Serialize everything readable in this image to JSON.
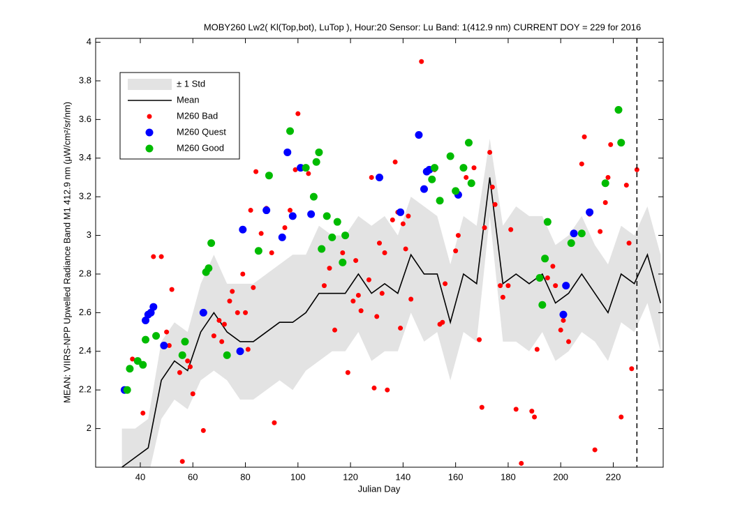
{
  "chart_data": {
    "type": "line",
    "title": "MOBY260   Lw2( Kl(Top,bot), LuTop ),   Hour:20 Sensor: Lu Band: 1(412.9 nm)   CURRENT DOY = 229 for 2016",
    "x_label": "Julian Day",
    "y_label": "MEAN: VIIRS-NPP Upwelled Radiance Band M1 412.9 nm (μW/cm²/sr/nm)",
    "xlim": [
      23,
      239
    ],
    "ylim": [
      1.8,
      4.02
    ],
    "xticks": [
      40,
      60,
      80,
      100,
      120,
      140,
      160,
      180,
      200,
      220
    ],
    "yticks": [
      2,
      2.2,
      2.4,
      2.6,
      2.8,
      3,
      3.2,
      3.4,
      3.6,
      3.8,
      4
    ],
    "current_day": 229,
    "legend": "upper left",
    "series": [
      {
        "name": "Mean",
        "style": "line",
        "color": "#000000",
        "x": [
          33,
          38,
          43,
          48,
          53,
          58,
          63,
          68,
          73,
          78,
          83,
          88,
          93,
          98,
          103,
          108,
          113,
          118,
          123,
          128,
          133,
          138,
          143,
          148,
          153,
          158,
          163,
          168,
          173,
          178,
          183,
          188,
          193,
          198,
          203,
          208,
          213,
          218,
          223,
          228,
          233,
          238
        ],
        "values": [
          1.8,
          1.85,
          1.9,
          2.25,
          2.35,
          2.3,
          2.5,
          2.6,
          2.5,
          2.45,
          2.45,
          2.5,
          2.55,
          2.55,
          2.6,
          2.7,
          2.7,
          2.7,
          2.8,
          2.7,
          2.75,
          2.7,
          2.9,
          2.8,
          2.8,
          2.55,
          2.8,
          2.75,
          3.3,
          2.75,
          2.8,
          2.75,
          2.8,
          2.65,
          2.7,
          2.8,
          2.7,
          2.6,
          2.8,
          2.75,
          2.9,
          2.65
        ]
      },
      {
        "name": "± 1 Std",
        "style": "band",
        "color": "#e3e3e3",
        "values": [
          0.2,
          0.15,
          0.15,
          0.2,
          0.2,
          0.2,
          0.25,
          0.3,
          0.25,
          0.3,
          0.3,
          0.3,
          0.3,
          0.35,
          0.3,
          0.35,
          0.3,
          0.3,
          0.3,
          0.35,
          0.35,
          0.3,
          0.3,
          0.35,
          0.3,
          0.3,
          0.3,
          0.3,
          0.2,
          0.3,
          0.35,
          0.35,
          0.3,
          0.3,
          0.3,
          0.3,
          0.25,
          0.25,
          0.25,
          0.25,
          0.25,
          0.25
        ]
      },
      {
        "name": "M260 Bad",
        "style": "scatter",
        "color": "#ff0000",
        "size": 3.5,
        "x": [
          37,
          41,
          45,
          48,
          50,
          51,
          52,
          55,
          56,
          58,
          59,
          60,
          64,
          68,
          70,
          71,
          72,
          74,
          75,
          77,
          79,
          80,
          81,
          82,
          83,
          84,
          86,
          88,
          90,
          91,
          95,
          97,
          99,
          100,
          104,
          110,
          112,
          114,
          117,
          119,
          121,
          122,
          123,
          124,
          127,
          128,
          129,
          130,
          131,
          132,
          133,
          134,
          136,
          137,
          138,
          139,
          140,
          141,
          142,
          143,
          147,
          152,
          154,
          155,
          156,
          160,
          161,
          164,
          167,
          169,
          170,
          171,
          173,
          174,
          175,
          177,
          178,
          180,
          181,
          183,
          185,
          189,
          190,
          191,
          195,
          197,
          198,
          200,
          201,
          203,
          208,
          209,
          211,
          213,
          215,
          217,
          218,
          219,
          223,
          225,
          226,
          227,
          229
        ],
        "values": [
          2.36,
          2.08,
          2.89,
          2.89,
          2.5,
          2.43,
          2.72,
          2.29,
          1.83,
          2.35,
          2.32,
          2.18,
          1.99,
          2.48,
          2.56,
          2.45,
          2.54,
          2.66,
          2.71,
          2.6,
          2.8,
          2.6,
          2.41,
          3.13,
          2.73,
          3.33,
          3.01,
          3.14,
          2.91,
          2.03,
          3.04,
          3.13,
          3.34,
          3.63,
          3.32,
          2.74,
          2.83,
          2.51,
          2.91,
          2.29,
          2.66,
          2.87,
          2.69,
          2.61,
          2.77,
          3.3,
          2.21,
          2.58,
          2.96,
          2.7,
          2.91,
          2.2,
          3.08,
          3.38,
          3.12,
          2.52,
          3.06,
          2.93,
          3.1,
          2.67,
          3.9,
          3.34,
          2.54,
          2.55,
          2.75,
          2.92,
          3.0,
          3.3,
          3.35,
          2.46,
          2.11,
          3.04,
          3.43,
          3.25,
          3.16,
          2.74,
          2.68,
          2.74,
          3.03,
          2.1,
          1.82,
          2.09,
          2.06,
          2.41,
          2.78,
          2.84,
          2.74,
          2.51,
          2.56,
          2.45,
          3.37,
          3.51,
          3.11,
          1.89,
          3.02,
          3.17,
          3.3,
          3.47,
          2.06,
          3.26,
          2.96,
          2.31,
          3.34
        ]
      },
      {
        "name": "M260 Quest",
        "style": "scatter",
        "color": "#0000ff",
        "size": 5.5,
        "x": [
          34,
          42,
          43,
          44,
          45,
          49,
          64,
          78,
          79,
          88,
          94,
          96,
          98,
          101,
          105,
          131,
          139,
          146,
          148,
          149,
          150,
          161,
          201,
          202,
          205,
          211
        ],
        "values": [
          2.2,
          2.56,
          2.59,
          2.6,
          2.63,
          2.43,
          2.6,
          2.4,
          3.03,
          3.13,
          2.99,
          3.43,
          3.1,
          3.35,
          3.11,
          3.3,
          3.12,
          3.52,
          3.24,
          3.33,
          3.34,
          3.21,
          2.59,
          2.74,
          3.01,
          3.12
        ]
      },
      {
        "name": "M260 Good",
        "style": "scatter",
        "color": "#00bb00",
        "size": 5.5,
        "x": [
          35,
          36,
          39,
          41,
          42,
          46,
          56,
          57,
          65,
          66,
          67,
          73,
          85,
          89,
          97,
          103,
          106,
          107,
          108,
          109,
          111,
          113,
          115,
          117,
          118,
          151,
          152,
          154,
          158,
          160,
          163,
          165,
          166,
          192,
          193,
          194,
          195,
          204,
          208,
          217,
          222,
          223
        ],
        "values": [
          2.2,
          2.31,
          2.35,
          2.33,
          2.46,
          2.48,
          2.38,
          2.45,
          2.81,
          2.83,
          2.96,
          2.38,
          2.92,
          3.31,
          3.54,
          3.35,
          3.2,
          3.38,
          3.43,
          2.93,
          3.1,
          2.99,
          3.07,
          2.86,
          3.0,
          3.29,
          3.35,
          3.18,
          3.41,
          3.23,
          3.35,
          3.48,
          3.27,
          2.78,
          2.64,
          2.88,
          3.07,
          2.96,
          3.01,
          3.27,
          3.65,
          3.48
        ]
      }
    ]
  }
}
